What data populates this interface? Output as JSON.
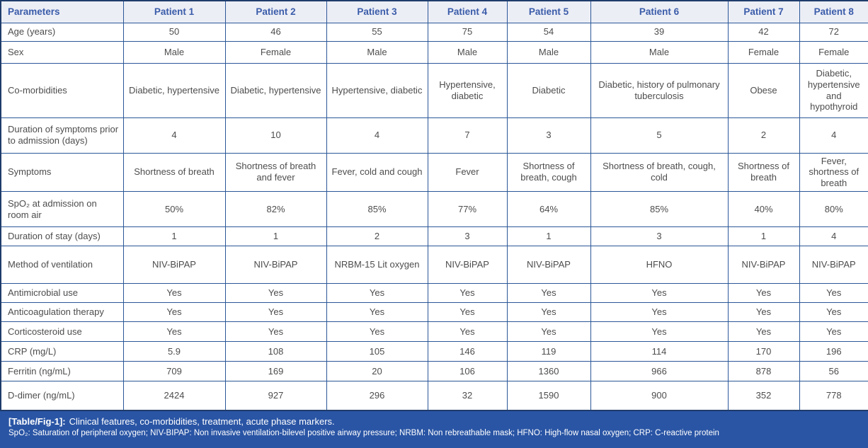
{
  "table": {
    "columns": [
      "Parameters",
      "Patient 1",
      "Patient 2",
      "Patient 3",
      "Patient 4",
      "Patient 5",
      "Patient 6",
      "Patient 7",
      "Patient 8"
    ],
    "rows": [
      {
        "label": "Age (years)",
        "values": [
          "50",
          "46",
          "55",
          "75",
          "54",
          "39",
          "42",
          "72"
        ]
      },
      {
        "label": "Sex",
        "values": [
          "Male",
          "Female",
          "Male",
          "Male",
          "Male",
          "Male",
          "Female",
          "Female"
        ]
      },
      {
        "label": "Co-morbidities",
        "values": [
          "Diabetic, hypertensive",
          "Diabetic, hypertensive",
          "Hypertensive, diabetic",
          "Hypertensive, diabetic",
          "Diabetic",
          "Diabetic, history of pulmonary tuberculosis",
          "Obese",
          "Diabetic, hypertensive and hypothyroid"
        ]
      },
      {
        "label": "Duration of symptoms prior to admission (days)",
        "values": [
          "4",
          "10",
          "4",
          "7",
          "3",
          "5",
          "2",
          "4"
        ]
      },
      {
        "label": "Symptoms",
        "values": [
          "Shortness of breath",
          "Shortness of breath and fever",
          "Fever, cold and cough",
          "Fever",
          "Shortness of breath, cough",
          "Shortness of breath, cough, cold",
          "Shortness of breath",
          "Fever, shortness of breath"
        ]
      },
      {
        "label": "SpO₂ at admission on room air",
        "values": [
          "50%",
          "82%",
          "85%",
          "77%",
          "64%",
          "85%",
          "40%",
          "80%"
        ]
      },
      {
        "label": "Duration of stay (days)",
        "values": [
          "1",
          "1",
          "2",
          "3",
          "1",
          "3",
          "1",
          "4"
        ]
      },
      {
        "label": "Method of ventilation",
        "values": [
          "NIV-BiPAP",
          "NIV-BiPAP",
          "NRBM-15 Lit oxygen",
          "NIV-BiPAP",
          "NIV-BiPAP",
          "HFNO",
          "NIV-BiPAP",
          "NIV-BiPAP"
        ]
      },
      {
        "label": "Antimicrobial use",
        "values": [
          "Yes",
          "Yes",
          "Yes",
          "Yes",
          "Yes",
          "Yes",
          "Yes",
          "Yes"
        ]
      },
      {
        "label": "Anticoagulation therapy",
        "values": [
          "Yes",
          "Yes",
          "Yes",
          "Yes",
          "Yes",
          "Yes",
          "Yes",
          "Yes"
        ]
      },
      {
        "label": "Corticosteroid use",
        "values": [
          "Yes",
          "Yes",
          "Yes",
          "Yes",
          "Yes",
          "Yes",
          "Yes",
          "Yes"
        ]
      },
      {
        "label": "CRP (mg/L)",
        "values": [
          "5.9",
          "108",
          "105",
          "146",
          "119",
          "114",
          "170",
          "196"
        ]
      },
      {
        "label": "Ferritin (ng/mL)",
        "values": [
          "709",
          "169",
          "20",
          "106",
          "1360",
          "966",
          "878",
          "56"
        ]
      },
      {
        "label": "D-dimer (ng/mL)",
        "values": [
          "2424",
          "927",
          "296",
          "32",
          "1590",
          "900",
          "352",
          "778"
        ]
      }
    ]
  },
  "caption": {
    "tag": "[Table/Fig-1]:",
    "title": "Clinical features, co-morbidities, treatment, acute phase markers.",
    "footnote": "SpO₂: Saturation of peripheral oxygen; NIV-BIPAP: Non invasive ventilation-bilevel positive airway pressure; NRBM: Non rebreathable mask; HFNO: High-flow nasal oxygen; CRP: C-reactive protein"
  },
  "colors": {
    "border_outer": "#1f3c6b",
    "grid": "#2b5797",
    "header_bg": "#eceef6",
    "header_text": "#3a5ca9",
    "body_text": "#4d4d4d",
    "band_bg": "#2a55a5",
    "band_text": "#ffffff"
  }
}
